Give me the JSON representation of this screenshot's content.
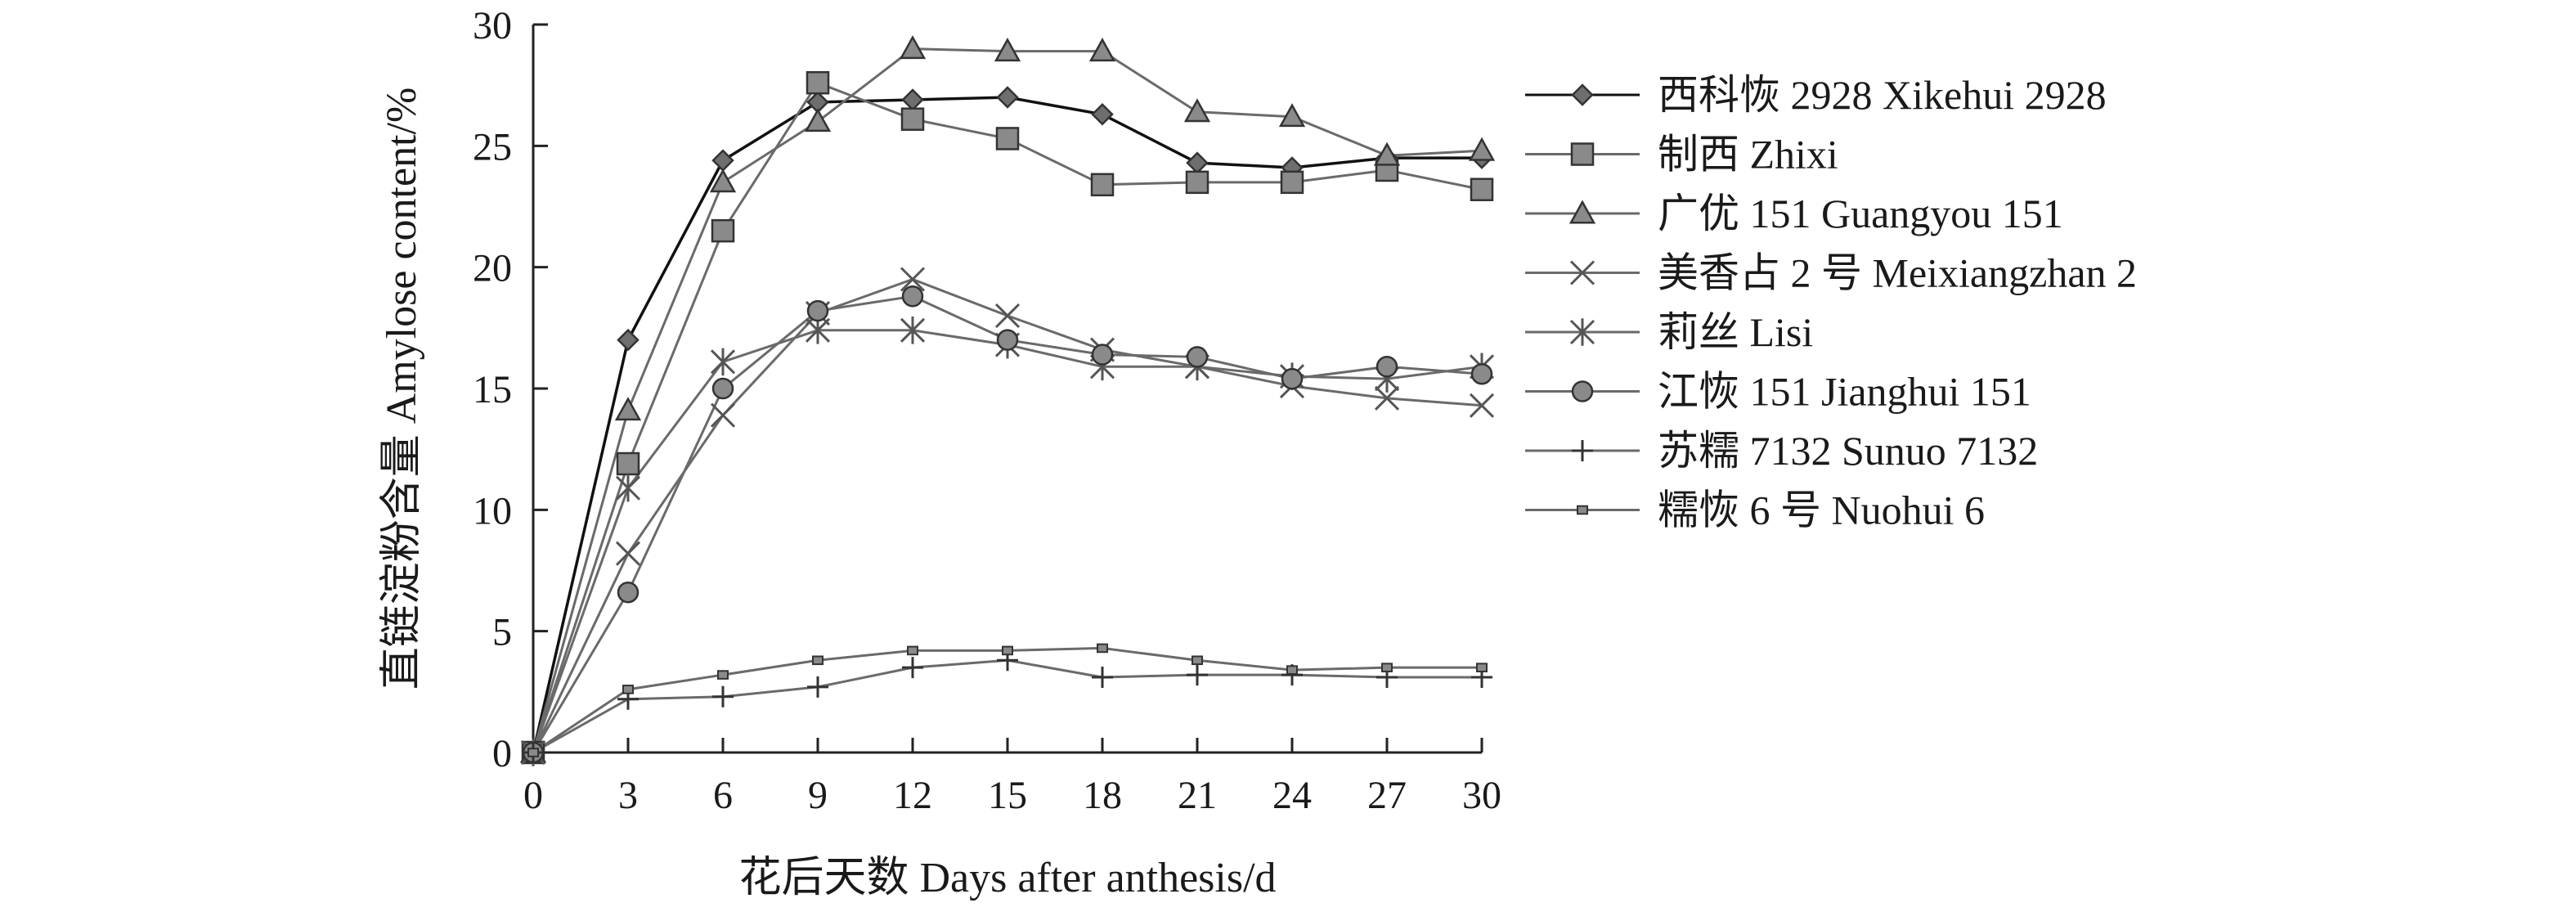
{
  "chart_data": {
    "type": "line",
    "title": "",
    "xlabel": "花后天数 Days after anthesis/d",
    "ylabel": "直链淀粉含量 Amylose content/%",
    "xlim": [
      0,
      30
    ],
    "ylim": [
      0,
      30
    ],
    "x_ticks": [
      "0",
      "3",
      "6",
      "9",
      "12",
      "15",
      "18",
      "21",
      "24",
      "27",
      "30"
    ],
    "y_ticks": [
      "0",
      "5",
      "10",
      "15",
      "20",
      "25",
      "30"
    ],
    "x": [
      0,
      3,
      6,
      9,
      12,
      15,
      18,
      21,
      24,
      27,
      30
    ],
    "grid": false,
    "legend_position": "right",
    "series": [
      {
        "name": "西科恢 2928 Xikehui 2928",
        "marker": "diamond",
        "line_color": "#111111",
        "marker_fill": "#6e6e6e",
        "values": [
          0,
          17.0,
          24.4,
          26.8,
          26.9,
          27.0,
          26.3,
          24.3,
          24.1,
          24.5,
          24.5
        ]
      },
      {
        "name": "制西 Zhixi",
        "marker": "square",
        "line_color": "#6a6a6a",
        "marker_fill": "#8a8a8a",
        "values": [
          0,
          11.9,
          21.5,
          27.6,
          26.1,
          25.3,
          23.4,
          23.5,
          23.5,
          24.0,
          23.2
        ]
      },
      {
        "name": "广优 151 Guangyou 151",
        "marker": "triangle",
        "line_color": "#6a6a6a",
        "marker_fill": "#8a8a8a",
        "values": [
          0,
          14.1,
          23.5,
          26.0,
          29.0,
          28.9,
          28.9,
          26.4,
          26.2,
          24.6,
          24.8
        ]
      },
      {
        "name": "美香占 2 号 Meixiangzhan 2",
        "marker": "x",
        "line_color": "#6a6a6a",
        "marker_fill": "#6a6a6a",
        "values": [
          0,
          8.2,
          13.9,
          18.1,
          19.5,
          18.0,
          16.6,
          15.9,
          15.1,
          14.6,
          14.3
        ]
      },
      {
        "name": "莉丝 Lisi",
        "marker": "asterisk",
        "line_color": "#6a6a6a",
        "marker_fill": "#6a6a6a",
        "values": [
          0,
          10.9,
          16.1,
          17.4,
          17.4,
          16.8,
          15.9,
          15.9,
          15.5,
          15.4,
          15.9
        ]
      },
      {
        "name": "江恢 151 Jianghui 151",
        "marker": "circle",
        "line_color": "#6a6a6a",
        "marker_fill": "#8a8a8a",
        "values": [
          0,
          6.6,
          15.0,
          18.2,
          18.8,
          17.0,
          16.4,
          16.3,
          15.4,
          15.9,
          15.6
        ]
      },
      {
        "name": "苏糯 7132 Sunuo 7132",
        "marker": "plus",
        "line_color": "#6a6a6a",
        "marker_fill": "#6a6a6a",
        "values": [
          0,
          2.2,
          2.3,
          2.7,
          3.5,
          3.8,
          3.1,
          3.2,
          3.2,
          3.1,
          3.1
        ]
      },
      {
        "name": "糯恢 6 号 Nuohui 6",
        "marker": "smallsquare",
        "line_color": "#6a6a6a",
        "marker_fill": "#8a8a8a",
        "values": [
          0,
          2.6,
          3.2,
          3.8,
          4.2,
          4.2,
          4.3,
          3.8,
          3.4,
          3.5,
          3.5
        ]
      }
    ]
  }
}
